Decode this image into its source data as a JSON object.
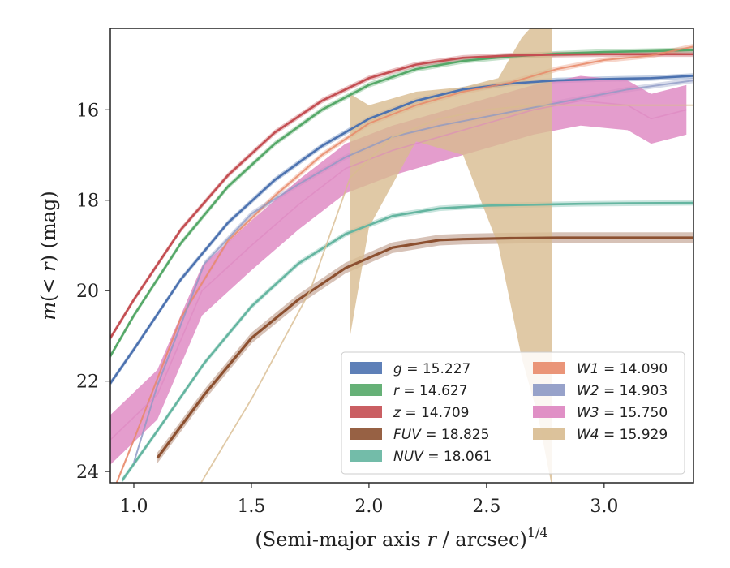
{
  "chart_data": {
    "type": "line",
    "xlabel": "(Semi-major axis r / arcsec)^1/4",
    "xlabel_parts": {
      "main": "(Semi-major axis ",
      "var": "r",
      "rest": " / arcsec)",
      "sup": "1/4"
    },
    "ylabel": "m(< r) (mag)",
    "ylabel_parts": {
      "m": "m",
      "paren_open": "(",
      "lt": "< ",
      "r": "r",
      "paren_close": ")",
      "unit": " (mag)"
    },
    "xlim": [
      0.9,
      3.38
    ],
    "ylim": [
      24.25,
      14.2
    ],
    "y_inverted": true,
    "xticks": [
      1.0,
      1.5,
      2.0,
      2.5,
      3.0
    ],
    "xtick_labels": [
      "1.0",
      "1.5",
      "2.0",
      "2.5",
      "3.0"
    ],
    "yticks": [
      16,
      18,
      20,
      22,
      24
    ],
    "ytick_labels": [
      "16",
      "18",
      "20",
      "22",
      "24"
    ],
    "legend_placement": "lower-right",
    "grid": false,
    "series": [
      {
        "name": "g = 15.227",
        "sym": "g",
        "value": "15.227",
        "color": "#4c72b0",
        "x": [
          0.9,
          1.0,
          1.2,
          1.4,
          1.6,
          1.8,
          2.0,
          2.2,
          2.4,
          2.6,
          2.8,
          3.0,
          3.2,
          3.38
        ],
        "y": [
          22.05,
          21.3,
          19.75,
          18.5,
          17.55,
          16.8,
          16.2,
          15.8,
          15.55,
          15.42,
          15.35,
          15.32,
          15.3,
          15.25
        ]
      },
      {
        "name": "r = 14.627",
        "sym": "r",
        "value": "14.627",
        "color": "#55a868",
        "x": [
          0.9,
          1.0,
          1.2,
          1.4,
          1.6,
          1.8,
          2.0,
          2.2,
          2.4,
          2.6,
          2.8,
          3.0,
          3.2,
          3.38
        ],
        "y": [
          21.45,
          20.55,
          18.95,
          17.7,
          16.75,
          16.0,
          15.45,
          15.1,
          14.92,
          14.82,
          14.76,
          14.72,
          14.7,
          14.68
        ]
      },
      {
        "name": "z = 14.709",
        "sym": "z",
        "value": "14.709",
        "color": "#c44e52",
        "x": [
          0.9,
          1.0,
          1.2,
          1.4,
          1.6,
          1.8,
          2.0,
          2.2,
          2.4,
          2.6,
          2.8,
          3.0,
          3.2,
          3.38
        ],
        "y": [
          21.05,
          20.2,
          18.65,
          17.45,
          16.5,
          15.8,
          15.3,
          15.0,
          14.85,
          14.8,
          14.78,
          14.77,
          14.77,
          14.77
        ]
      },
      {
        "name": "FUV = 18.825",
        "sym": "FUV",
        "value": "18.825",
        "color": "#8c5030",
        "x": [
          1.1,
          1.3,
          1.5,
          1.7,
          1.9,
          2.1,
          2.3,
          2.4,
          2.6,
          2.8,
          3.0,
          3.2,
          3.38
        ],
        "y": [
          23.7,
          22.3,
          21.05,
          20.2,
          19.5,
          19.05,
          18.88,
          18.86,
          18.84,
          18.83,
          18.83,
          18.83,
          18.83
        ]
      },
      {
        "name": "NUV = 18.061",
        "sym": "NUV",
        "value": "18.061",
        "color": "#64b5a0",
        "x": [
          0.95,
          1.1,
          1.3,
          1.5,
          1.7,
          1.9,
          2.1,
          2.3,
          2.5,
          2.7,
          2.9,
          3.1,
          3.38
        ],
        "y": [
          24.2,
          23.1,
          21.6,
          20.35,
          19.4,
          18.75,
          18.35,
          18.18,
          18.12,
          18.1,
          18.08,
          18.07,
          18.06
        ]
      },
      {
        "name": "W1 = 14.090",
        "sym": "W1",
        "value": "14.090",
        "color": "#e8896a",
        "x": [
          0.9,
          1.0,
          1.2,
          1.4,
          1.6,
          1.8,
          2.0,
          2.2,
          2.4,
          2.6,
          2.8,
          3.0,
          3.2,
          3.38
        ],
        "y": [
          24.6,
          23.3,
          20.6,
          18.9,
          17.9,
          17.0,
          16.3,
          15.9,
          15.6,
          15.4,
          15.1,
          14.9,
          14.8,
          14.6
        ]
      },
      {
        "name": "W2 = 14.903",
        "sym": "W2",
        "value": "14.903",
        "color": "#8c98c4",
        "x": [
          1.0,
          1.1,
          1.3,
          1.5,
          1.7,
          1.9,
          2.1,
          2.3,
          2.5,
          2.7,
          2.9,
          3.1,
          3.38
        ],
        "y": [
          23.8,
          22.1,
          19.4,
          18.3,
          17.65,
          17.05,
          16.6,
          16.35,
          16.15,
          15.95,
          15.75,
          15.55,
          15.35
        ]
      },
      {
        "name": "W3 = 15.750",
        "sym": "W3",
        "value": "15.750",
        "color": "#dd84c0",
        "x": [
          0.9,
          1.1,
          1.29,
          1.5,
          1.7,
          1.9,
          2.1,
          2.3,
          2.5,
          2.7,
          2.9,
          3.1,
          3.2,
          3.35
        ],
        "y": [
          23.3,
          22.3,
          20.0,
          19.0,
          18.1,
          17.3,
          16.9,
          16.6,
          16.3,
          16.0,
          15.8,
          15.9,
          16.2,
          16.0
        ]
      },
      {
        "name": "W4 = 15.929",
        "sym": "W4",
        "value": "15.929",
        "color": "#d8bb90",
        "x": [
          1.28,
          1.5,
          1.75,
          1.92,
          2.1,
          2.3,
          2.5,
          2.7,
          2.9,
          3.1,
          3.38
        ],
        "y": [
          24.3,
          22.4,
          20.0,
          17.5,
          16.6,
          16.2,
          16.0,
          15.9,
          15.9,
          15.9,
          15.9
        ]
      }
    ]
  }
}
